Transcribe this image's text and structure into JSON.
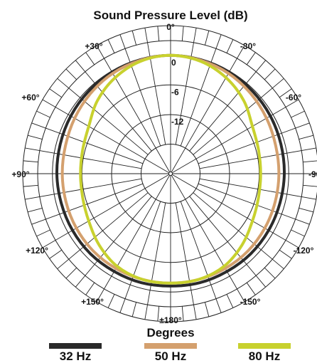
{
  "chart_data": {
    "type": "polar",
    "title": "Sound Pressure Level (dB)",
    "xlabel": "Degrees",
    "angle_labels": [
      "0°",
      "-30°",
      "-60°",
      "-90°",
      "-120°",
      "-150°",
      "±180°",
      "+150°",
      "+120°",
      "+90°",
      "+60°",
      "+30°"
    ],
    "radial_labels": [
      "0",
      "-6",
      "-12"
    ],
    "radial_ticks_db": [
      0,
      -6,
      -12
    ],
    "radial_range_db": [
      -24,
      3
    ],
    "grid": true,
    "legend_placement": "bottom",
    "angles_deg": [
      0,
      15,
      30,
      45,
      60,
      75,
      90,
      105,
      120,
      135,
      150,
      165,
      180,
      195,
      210,
      225,
      240,
      255,
      270,
      285,
      300,
      315,
      330,
      345
    ],
    "series": [
      {
        "name": "32 Hz",
        "color": "#2a2a2a",
        "values": [
          0.0,
          -0.1,
          -0.2,
          -0.4,
          -0.6,
          -0.8,
          -0.9,
          -1.0,
          -1.0,
          -1.0,
          -1.1,
          -1.1,
          -1.2,
          -1.1,
          -1.1,
          -1.0,
          -1.0,
          -1.0,
          -0.9,
          -0.8,
          -0.6,
          -0.4,
          -0.2,
          -0.1
        ]
      },
      {
        "name": "50 Hz",
        "color": "#d4a06e",
        "values": [
          0.0,
          -0.2,
          -0.5,
          -1.0,
          -1.5,
          -1.9,
          -2.0,
          -2.0,
          -1.9,
          -1.8,
          -1.8,
          -1.8,
          -1.8,
          -1.8,
          -1.8,
          -1.8,
          -1.9,
          -2.0,
          -2.0,
          -1.9,
          -1.5,
          -1.0,
          -0.5,
          -0.2
        ]
      },
      {
        "name": "80 Hz",
        "color": "#c8d12e",
        "values": [
          0.0,
          -0.4,
          -1.5,
          -3.0,
          -4.8,
          -5.5,
          -5.7,
          -5.5,
          -4.8,
          -3.5,
          -2.3,
          -1.8,
          -1.8,
          -1.8,
          -2.3,
          -3.5,
          -4.8,
          -5.5,
          -5.7,
          -5.5,
          -4.8,
          -3.0,
          -1.5,
          -0.4
        ]
      }
    ]
  }
}
